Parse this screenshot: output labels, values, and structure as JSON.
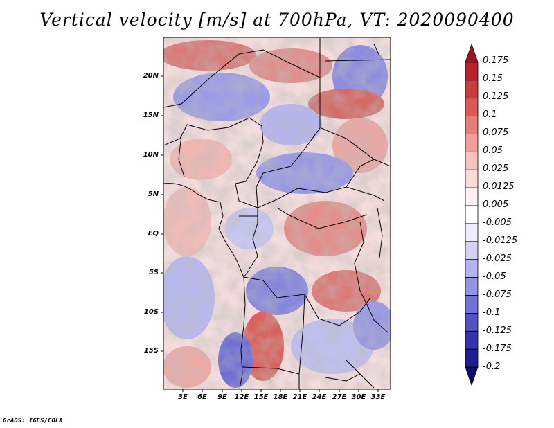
{
  "title": "Vertical velocity [m/s] at 700hPa, VT: 2020090400",
  "credit": "GrADS: IGES/COLA",
  "map": {
    "variable": "Vertical velocity",
    "units": "m/s",
    "level": "700hPa",
    "valid_time": "2020090400",
    "lat_labels": [
      "20N",
      "15N",
      "10N",
      "5N",
      "EQ",
      "5S",
      "10S",
      "15S"
    ],
    "lon_labels": [
      "3E",
      "6E",
      "9E",
      "12E",
      "15E",
      "18E",
      "21E",
      "24E",
      "27E",
      "30E",
      "33E"
    ]
  },
  "colorbar": {
    "labels": [
      "0.175",
      "0.15",
      "0.125",
      "0.1",
      "0.075",
      "0.05",
      "0.025",
      "0.0125",
      "0.005",
      "-0.005",
      "-0.0125",
      "-0.025",
      "-0.05",
      "-0.075",
      "-0.1",
      "-0.125",
      "-0.175",
      "-0.2"
    ],
    "colors": [
      "#a0141e",
      "#b8222a",
      "#cc3a3a",
      "#dc5a55",
      "#e67d76",
      "#ef9f98",
      "#f6c2bc",
      "#fbdcd7",
      "#fdf0ee",
      "#ffffff",
      "#ededfb",
      "#d2d2f6",
      "#b4b4ee",
      "#9494e4",
      "#7272d6",
      "#5252c6",
      "#3434b0",
      "#1e1e96",
      "#0c0c78"
    ]
  }
}
